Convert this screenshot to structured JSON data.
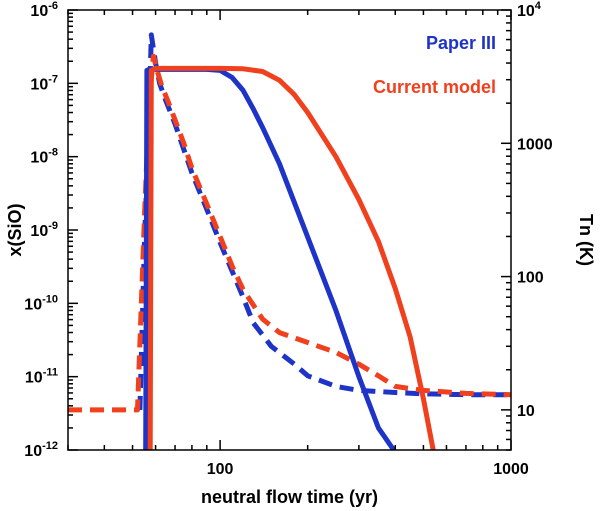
{
  "chart_data": {
    "type": "line",
    "xlabel": "neutral flow time (yr)",
    "ylabel_left": "x(SiO)",
    "ylabel_right": "Tn (K)",
    "x_scale": "log",
    "y_left_scale": "log",
    "y_right_scale": "log",
    "xlim": [
      30,
      1000
    ],
    "ylim_left": [
      1e-12,
      1e-06
    ],
    "ylim_right": [
      5,
      10000
    ],
    "grid": false,
    "legend_placement": "top-right",
    "colors": {
      "paper_iii": "#1e33c8",
      "current_model": "#f0401e"
    },
    "x_tick_labels": [
      {
        "value": 100,
        "label": "100"
      },
      {
        "value": 1000,
        "label": "1000"
      }
    ],
    "y_left_tick_labels": [
      {
        "value": 1e-06,
        "base": "10",
        "exp": "-6"
      },
      {
        "value": 1e-07,
        "base": "10",
        "exp": "-7"
      },
      {
        "value": 1e-08,
        "base": "10",
        "exp": "-8"
      },
      {
        "value": 1e-09,
        "base": "10",
        "exp": "-9"
      },
      {
        "value": 1e-10,
        "base": "10",
        "exp": "-10"
      },
      {
        "value": 1e-11,
        "base": "10",
        "exp": "-11"
      },
      {
        "value": 1e-12,
        "base": "10",
        "exp": "-12"
      }
    ],
    "y_right_tick_labels": [
      {
        "value": 10000,
        "base": "10",
        "exp": "4"
      },
      {
        "value": 1000,
        "label": "1000"
      },
      {
        "value": 100,
        "label": "100"
      },
      {
        "value": 10,
        "label": "10"
      }
    ],
    "series": [
      {
        "name": "Paper III",
        "quantity": "x(SiO)",
        "axis": "left",
        "style": "solid",
        "color": "#1e33c8",
        "x": [
          55.5,
          56,
          57,
          58,
          60,
          70,
          80,
          90,
          100,
          110,
          120,
          130,
          140,
          160,
          200,
          250,
          300,
          350,
          395
        ],
        "y": [
          1e-12,
          1.5e-07,
          1.55e-07,
          1.55e-07,
          1.55e-07,
          1.55e-07,
          1.55e-07,
          1.55e-07,
          1.5e-07,
          1.2e-07,
          8e-08,
          4.5e-08,
          2.5e-08,
          8e-09,
          8e-10,
          8e-11,
          1e-11,
          2e-12,
          1e-12
        ]
      },
      {
        "name": "Current model",
        "quantity": "x(SiO)",
        "axis": "left",
        "style": "solid",
        "color": "#f0401e",
        "x": [
          57.5,
          58,
          60,
          70,
          80,
          100,
          120,
          140,
          160,
          180,
          200,
          250,
          300,
          350,
          400,
          450,
          500,
          540
        ],
        "y": [
          1e-12,
          1.5e-07,
          1.6e-07,
          1.6e-07,
          1.6e-07,
          1.6e-07,
          1.58e-07,
          1.45e-07,
          1.1e-07,
          7e-08,
          4e-08,
          1e-08,
          2.6e-09,
          7e-10,
          1.6e-10,
          3.5e-11,
          5e-12,
          1e-12
        ]
      },
      {
        "name": "Paper III",
        "quantity": "Tn",
        "axis": "right",
        "style": "dashed",
        "color": "#1e33c8",
        "x": [
          53,
          55,
          57,
          58,
          60,
          62,
          65,
          70,
          75,
          80,
          90,
          100,
          110,
          120,
          130,
          150,
          180,
          200,
          250,
          300,
          400,
          500,
          700,
          1000
        ],
        "y": [
          10,
          200,
          1500,
          6500,
          4000,
          2800,
          2100,
          1400,
          900,
          600,
          320,
          180,
          110,
          70,
          45,
          30,
          22,
          18,
          15,
          14,
          13.5,
          13.2,
          13,
          13
        ]
      },
      {
        "name": "Current model",
        "quantity": "Tn",
        "axis": "right",
        "style": "dashed",
        "color": "#f0401e",
        "x": [
          30,
          45,
          52,
          55,
          57,
          59,
          61,
          63,
          66,
          70,
          75,
          80,
          90,
          100,
          110,
          120,
          140,
          160,
          200,
          250,
          300,
          350,
          400,
          500,
          700,
          1000
        ],
        "y": [
          10,
          10,
          10,
          300,
          2000,
          4500,
          3400,
          2700,
          2100,
          1500,
          1000,
          650,
          350,
          200,
          120,
          80,
          48,
          38,
          32,
          27,
          22,
          18,
          15,
          14,
          13.3,
          13
        ]
      }
    ],
    "legend": [
      {
        "label": "Paper III",
        "color": "#1e33c8"
      },
      {
        "label": "Current model",
        "color": "#f0401e"
      }
    ]
  }
}
